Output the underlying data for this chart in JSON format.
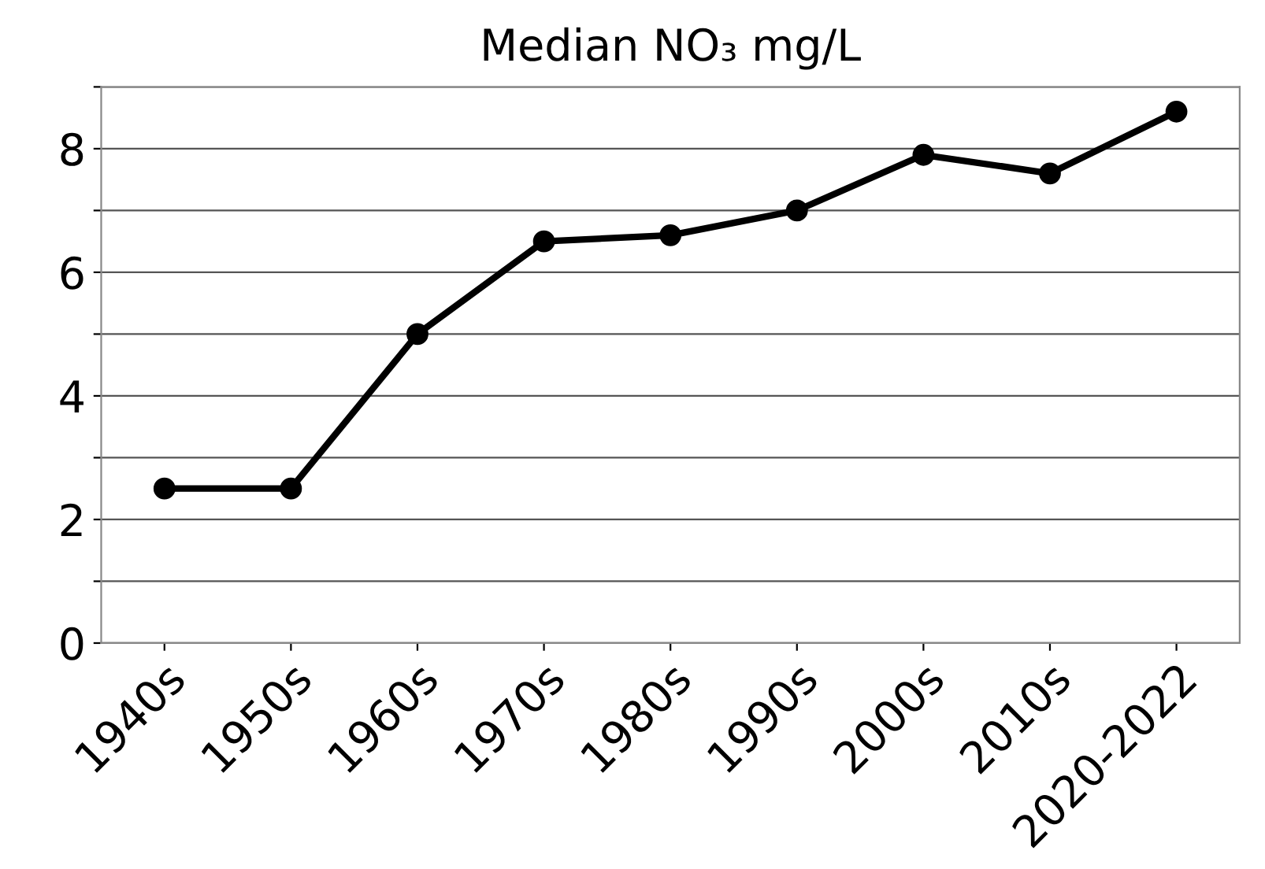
{
  "chart_data": {
    "type": "line",
    "title": "Median NO₃ mg/L",
    "categories": [
      "1940s",
      "1950s",
      "1960s",
      "1970s",
      "1980s",
      "1990s",
      "2000s",
      "2010s",
      "2020-2022"
    ],
    "series": [
      {
        "color": "#000000",
        "values": [
          2.5,
          2.5,
          5.0,
          6.5,
          6.6,
          7.0,
          7.9,
          7.6,
          8.6
        ]
      }
    ],
    "ylim": [
      0,
      9
    ],
    "yticks": [
      0,
      {
        "value": 1,
        "label": null
      },
      2,
      {
        "value": 3,
        "label": null
      },
      4,
      {
        "value": 5,
        "label": null
      },
      6,
      {
        "value": 7,
        "label": null
      },
      8,
      {
        "value": 9,
        "label": null
      }
    ],
    "grid": "y",
    "marker": "circle",
    "line_style": "solid",
    "legend": false
  }
}
